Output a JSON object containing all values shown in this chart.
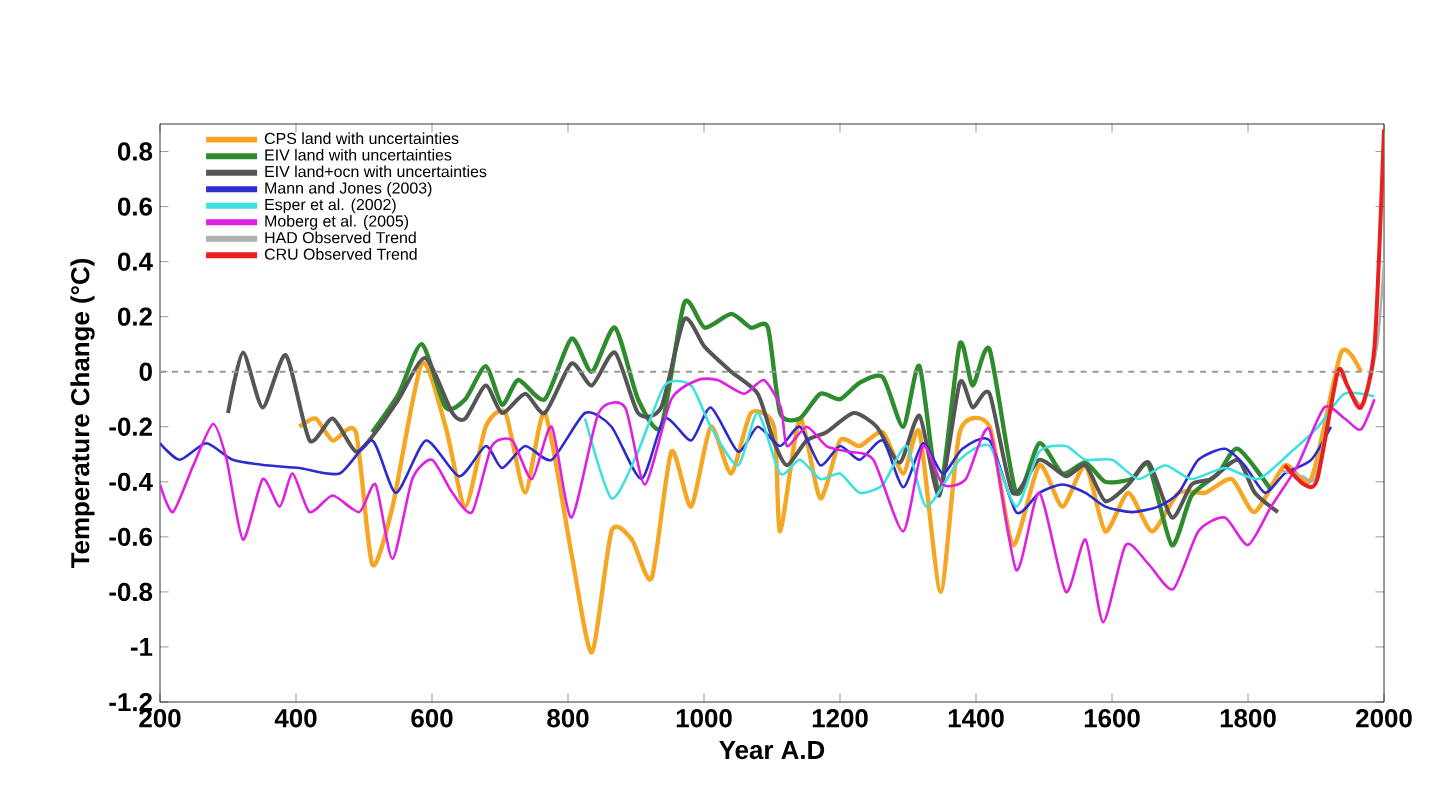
{
  "chart_data": {
    "type": "line",
    "xlabel": "Year A.D",
    "ylabel": "Temperature Change  (°C)",
    "xlim": [
      200,
      2000
    ],
    "ylim": [
      -1.2,
      0.9
    ],
    "xticks": [
      200,
      400,
      600,
      800,
      1000,
      1200,
      1400,
      1600,
      1800,
      2000
    ],
    "yticks": [
      0.8,
      0.6,
      0.4,
      0.2,
      0,
      -0.2,
      -0.4,
      -0.6,
      -0.8,
      -1,
      -1.2
    ],
    "legend": "top left",
    "grid": false,
    "ref_lines": [
      {
        "axis": "y",
        "value": 0,
        "color": "#999999",
        "line_style": "dashed"
      }
    ],
    "series": [
      {
        "name": "CPS land with uncertainties",
        "color": "#f5a623",
        "x": [
          405,
          429,
          454,
          488,
          512,
          542,
          585,
          620,
          649,
          679,
          708,
          737,
          766,
          805,
          835,
          864,
          894,
          923,
          952,
          981,
          1010,
          1040,
          1069,
          1103,
          1112,
          1141,
          1171,
          1200,
          1229,
          1263,
          1293,
          1317,
          1348,
          1376,
          1420,
          1454,
          1493,
          1527,
          1561,
          1590,
          1624,
          1659,
          1698,
          1737,
          1776,
          1810,
          1854,
          1893,
          1937,
          1966
        ],
        "values": [
          -0.2,
          -0.17,
          -0.25,
          -0.22,
          -0.7,
          -0.49,
          0.03,
          -0.2,
          -0.49,
          -0.2,
          -0.15,
          -0.44,
          -0.15,
          -0.66,
          -1.02,
          -0.58,
          -0.61,
          -0.75,
          -0.29,
          -0.49,
          -0.2,
          -0.37,
          -0.15,
          -0.2,
          -0.58,
          -0.17,
          -0.46,
          -0.25,
          -0.27,
          -0.22,
          -0.37,
          -0.22,
          -0.8,
          -0.22,
          -0.2,
          -0.63,
          -0.34,
          -0.49,
          -0.34,
          -0.58,
          -0.44,
          -0.58,
          -0.44,
          -0.44,
          -0.39,
          -0.51,
          -0.34,
          -0.39,
          0.07,
          0
        ]
      },
      {
        "name": "EIV land with uncertainties",
        "color": "#2e8b2e",
        "x": [
          512,
          551,
          585,
          620,
          649,
          679,
          703,
          727,
          766,
          805,
          835,
          869,
          903,
          937,
          971,
          1001,
          1040,
          1069,
          1094,
          1112,
          1141,
          1171,
          1200,
          1229,
          1263,
          1293,
          1317,
          1346,
          1376,
          1395,
          1420,
          1459,
          1493,
          1527,
          1561,
          1590,
          1629,
          1654,
          1688,
          1717,
          1756,
          1785,
          1834
        ],
        "values": [
          -0.22,
          -0.08,
          0.1,
          -0.13,
          -0.1,
          0.02,
          -0.12,
          -0.03,
          -0.1,
          0.12,
          0,
          0.16,
          -0.1,
          -0.2,
          0.25,
          0.16,
          0.21,
          0.16,
          0.16,
          -0.15,
          -0.17,
          -0.08,
          -0.1,
          -0.04,
          -0.02,
          -0.2,
          0.02,
          -0.44,
          0.1,
          -0.05,
          0.08,
          -0.44,
          -0.26,
          -0.37,
          -0.33,
          -0.4,
          -0.39,
          -0.34,
          -0.63,
          -0.45,
          -0.37,
          -0.28,
          -0.43
        ]
      },
      {
        "name": "EIV land+ocn with uncertainties",
        "color": "#555555",
        "x": [
          300,
          322,
          351,
          385,
          420,
          454,
          488,
          517,
          551,
          590,
          630,
          649,
          679,
          703,
          737,
          766,
          805,
          835,
          869,
          903,
          937,
          971,
          1001,
          1040,
          1079,
          1102,
          1122,
          1151,
          1180,
          1220,
          1254,
          1288,
          1317,
          1346,
          1376,
          1395,
          1420,
          1454,
          1493,
          1532,
          1561,
          1590,
          1624,
          1654,
          1688,
          1717,
          1746,
          1785,
          1810,
          1844
        ],
        "values": [
          -0.15,
          0.07,
          -0.13,
          0.06,
          -0.25,
          -0.17,
          -0.29,
          -0.22,
          -0.1,
          0.05,
          -0.15,
          -0.17,
          -0.05,
          -0.15,
          -0.08,
          -0.15,
          0.03,
          -0.05,
          0.07,
          -0.15,
          -0.13,
          0.19,
          0.09,
          0,
          -0.08,
          -0.25,
          -0.34,
          -0.25,
          -0.22,
          -0.15,
          -0.2,
          -0.33,
          -0.16,
          -0.45,
          -0.04,
          -0.13,
          -0.08,
          -0.44,
          -0.32,
          -0.38,
          -0.34,
          -0.47,
          -0.41,
          -0.33,
          -0.53,
          -0.41,
          -0.39,
          -0.32,
          -0.44,
          -0.51
        ]
      },
      {
        "name": "Mann and Jones (2003)",
        "color": "#2b2bd0",
        "x": [
          200,
          229,
          268,
          307,
          356,
          405,
          464,
          512,
          547,
          591,
          640,
          679,
          703,
          737,
          776,
          825,
          864,
          908,
          942,
          981,
          1010,
          1050,
          1079,
          1112,
          1141,
          1171,
          1200,
          1229,
          1263,
          1293,
          1322,
          1351,
          1380,
          1420,
          1459,
          1493,
          1527,
          1561,
          1590,
          1629,
          1668,
          1698,
          1727,
          1766,
          1795,
          1825,
          1854,
          1893,
          1922
        ],
        "values": [
          -0.26,
          -0.32,
          -0.26,
          -0.32,
          -0.34,
          -0.35,
          -0.37,
          -0.25,
          -0.44,
          -0.25,
          -0.38,
          -0.27,
          -0.35,
          -0.27,
          -0.32,
          -0.15,
          -0.2,
          -0.39,
          -0.17,
          -0.25,
          -0.13,
          -0.29,
          -0.2,
          -0.27,
          -0.2,
          -0.34,
          -0.27,
          -0.32,
          -0.25,
          -0.42,
          -0.26,
          -0.37,
          -0.28,
          -0.25,
          -0.51,
          -0.44,
          -0.41,
          -0.44,
          -0.49,
          -0.51,
          -0.49,
          -0.44,
          -0.32,
          -0.28,
          -0.34,
          -0.44,
          -0.37,
          -0.32,
          -0.2
        ]
      },
      {
        "name": "Esper et al. (2002)",
        "color": "#40e0e0",
        "x": [
          825,
          864,
          903,
          942,
          981,
          1010,
          1050,
          1079,
          1112,
          1141,
          1171,
          1200,
          1229,
          1263,
          1298,
          1327,
          1376,
          1420,
          1459,
          1493,
          1532,
          1561,
          1600,
          1639,
          1678,
          1717,
          1766,
          1815,
          1864,
          1903,
          1942,
          1986
        ],
        "values": [
          -0.17,
          -0.46,
          -0.29,
          -0.05,
          -0.05,
          -0.2,
          -0.34,
          -0.15,
          -0.37,
          -0.32,
          -0.39,
          -0.37,
          -0.44,
          -0.41,
          -0.27,
          -0.49,
          -0.32,
          -0.27,
          -0.49,
          -0.29,
          -0.27,
          -0.32,
          -0.32,
          -0.39,
          -0.34,
          -0.39,
          -0.35,
          -0.39,
          -0.29,
          -0.2,
          -0.08,
          -0.09
        ]
      },
      {
        "name": "Moberg et al. (2005)",
        "color": "#e020e0",
        "x": [
          200,
          219,
          249,
          278,
          298,
          322,
          351,
          376,
          395,
          420,
          454,
          493,
          517,
          542,
          571,
          600,
          630,
          659,
          688,
          718,
          747,
          776,
          805,
          845,
          884,
          913,
          952,
          991,
          1020,
          1059,
          1088,
          1113,
          1122,
          1151,
          1180,
          1210,
          1249,
          1293,
          1322,
          1351,
          1385,
          1420,
          1459,
          1493,
          1532,
          1561,
          1587,
          1620,
          1654,
          1690,
          1727,
          1766,
          1800,
          1834,
          1873,
          1912,
          1942,
          1966,
          1986
        ],
        "values": [
          -0.41,
          -0.51,
          -0.34,
          -0.19,
          -0.32,
          -0.61,
          -0.39,
          -0.49,
          -0.37,
          -0.51,
          -0.45,
          -0.51,
          -0.41,
          -0.68,
          -0.39,
          -0.32,
          -0.44,
          -0.51,
          -0.27,
          -0.25,
          -0.39,
          -0.2,
          -0.53,
          -0.15,
          -0.13,
          -0.41,
          -0.1,
          -0.03,
          -0.03,
          -0.08,
          -0.03,
          -0.13,
          -0.27,
          -0.2,
          -0.27,
          -0.29,
          -0.32,
          -0.58,
          -0.27,
          -0.41,
          -0.39,
          -0.21,
          -0.72,
          -0.44,
          -0.8,
          -0.61,
          -0.91,
          -0.63,
          -0.7,
          -0.79,
          -0.58,
          -0.53,
          -0.63,
          -0.49,
          -0.34,
          -0.13,
          -0.17,
          -0.21,
          -0.1
        ]
      },
      {
        "name": "HAD Observed Trend",
        "color": "#b0b0b0",
        "x": [
          1850,
          1880,
          1900,
          1930,
          1950,
          1970,
          1990,
          2000
        ],
        "values": [
          -0.36,
          -0.38,
          -0.38,
          -0.02,
          -0.07,
          -0.12,
          0.1,
          0.4
        ]
      },
      {
        "name": "CRU Observed Trend",
        "color": "#e8201e",
        "x": [
          1854,
          1883,
          1902,
          1932,
          1946,
          1966,
          1986,
          2000
        ],
        "values": [
          -0.34,
          -0.41,
          -0.39,
          0,
          -0.05,
          -0.13,
          0.09,
          0.88
        ]
      }
    ]
  }
}
